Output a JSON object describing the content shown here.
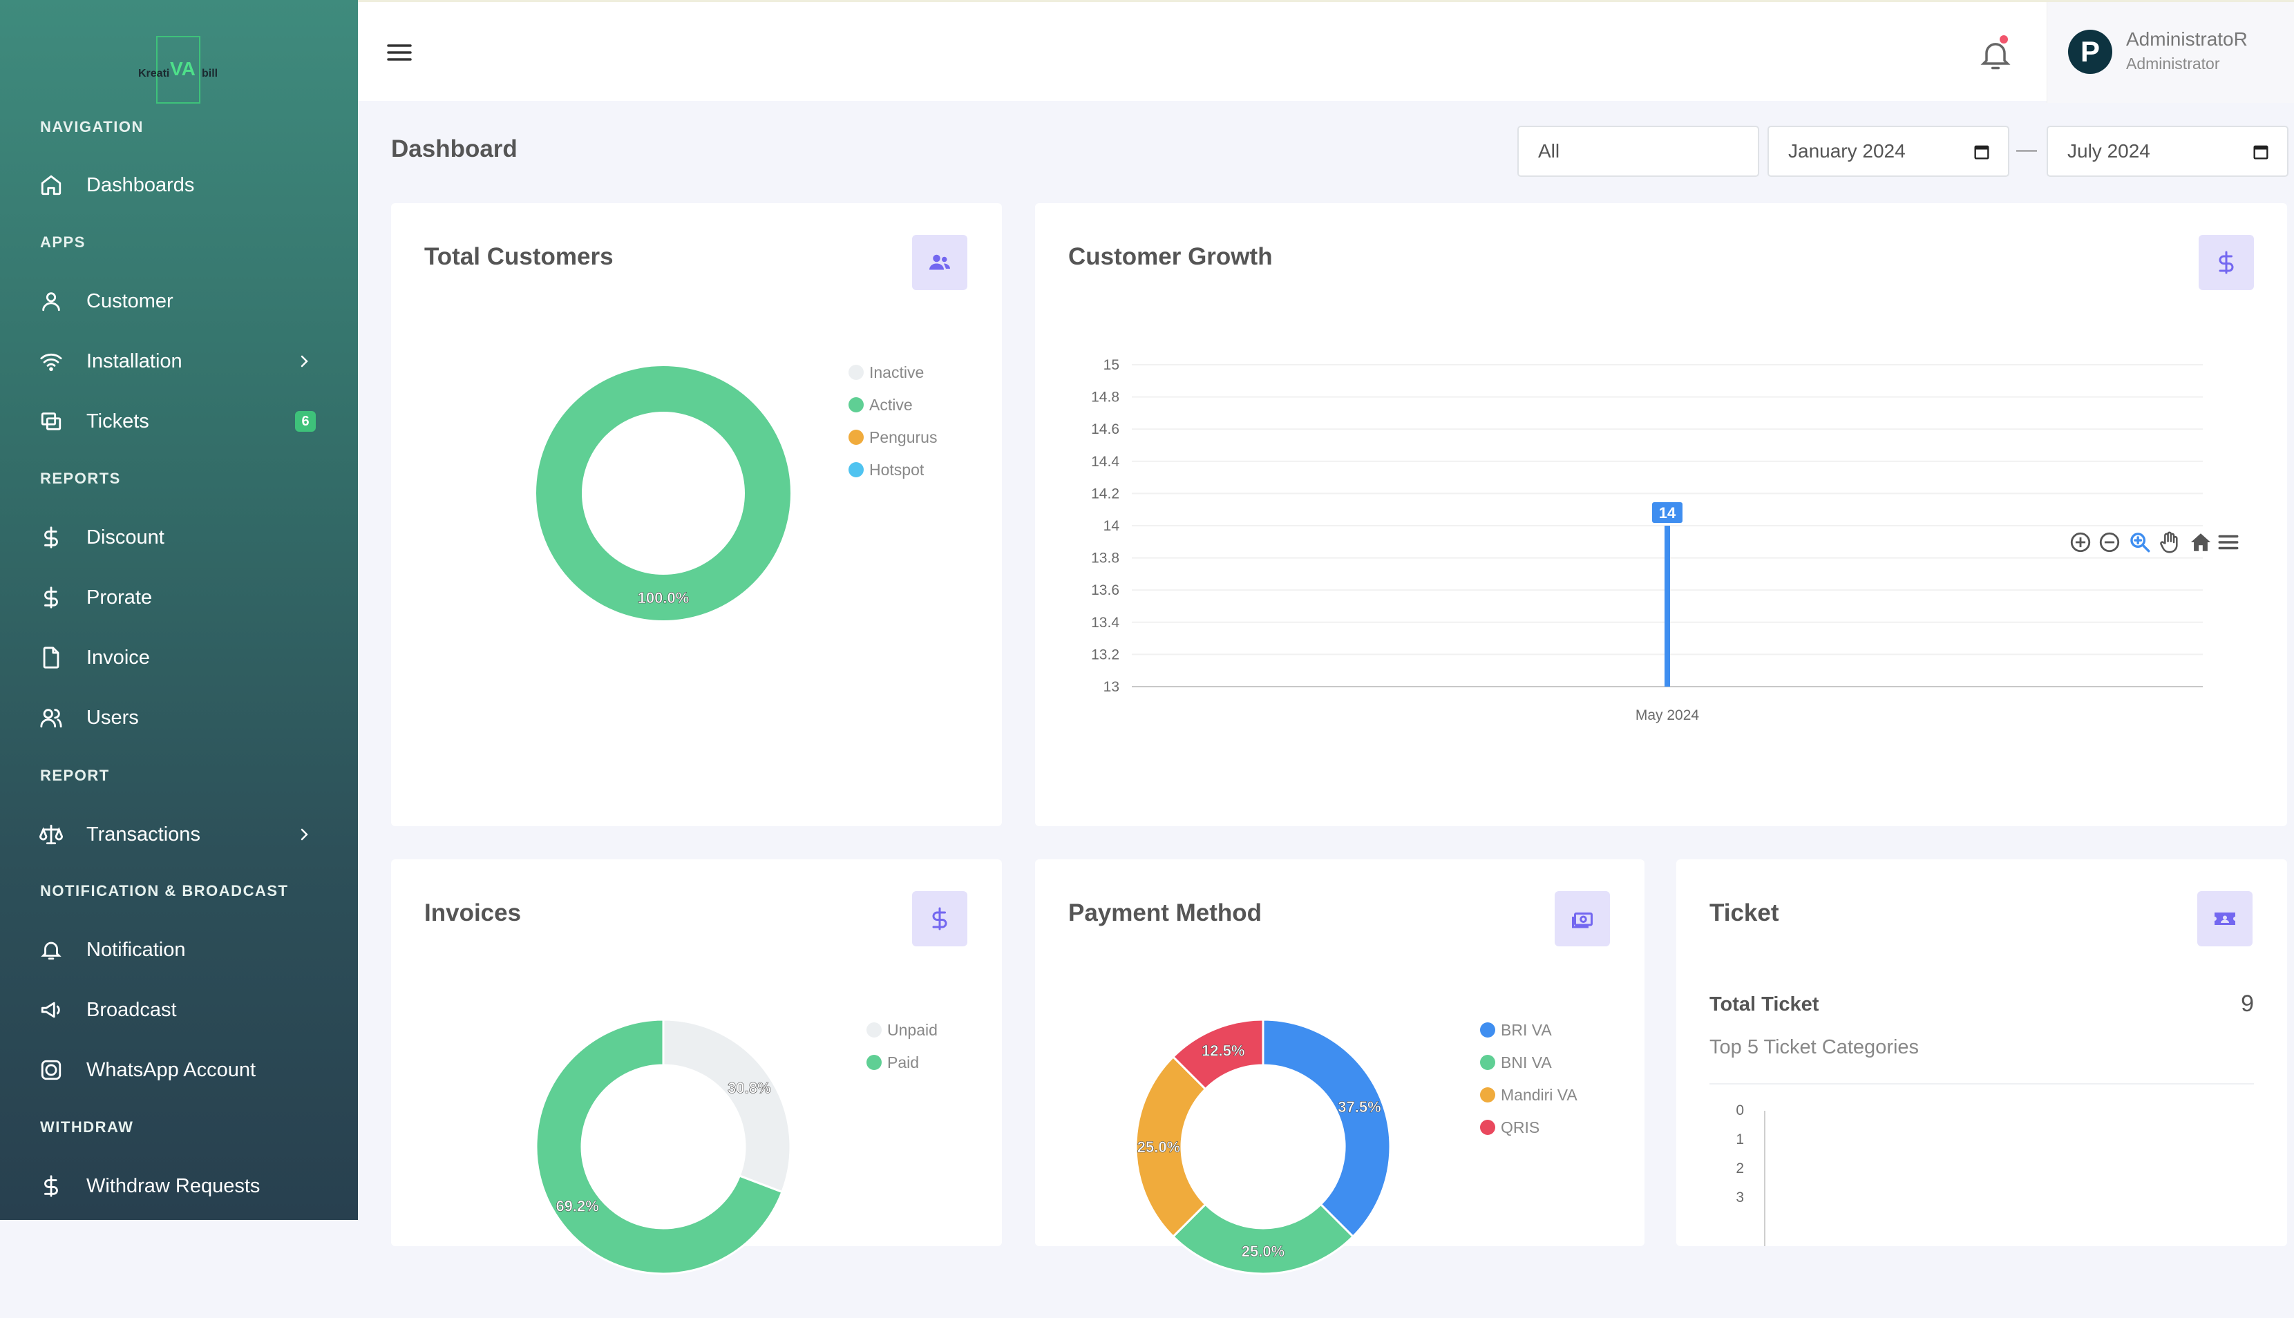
{
  "brand": {
    "logo_left": "Kreati",
    "logo_mid": "VA",
    "logo_right": "bill"
  },
  "sidebar": {
    "sections": [
      "NAVIGATION",
      "APPS",
      "REPORTS",
      "REPORT",
      "NOTIFICATION & BROADCAST",
      "WITHDRAW"
    ],
    "items": [
      {
        "label": "Dashboards",
        "icon": "home-icon"
      },
      {
        "label": "Customer",
        "icon": "user-icon"
      },
      {
        "label": "Installation",
        "icon": "wifi-icon"
      },
      {
        "label": "Tickets",
        "icon": "tickets-icon",
        "badge": "6"
      },
      {
        "label": "Discount",
        "icon": "dollar-icon"
      },
      {
        "label": "Prorate",
        "icon": "dollar-icon"
      },
      {
        "label": "Invoice",
        "icon": "file-icon"
      },
      {
        "label": "Users",
        "icon": "users-icon"
      },
      {
        "label": "Transactions",
        "icon": "scale-icon"
      },
      {
        "label": "Notification",
        "icon": "bell-icon"
      },
      {
        "label": "Broadcast",
        "icon": "megaphone-icon"
      },
      {
        "label": "WhatsApp Account",
        "icon": "whatsapp-icon"
      },
      {
        "label": "Withdraw Requests",
        "icon": "dollar-icon"
      }
    ]
  },
  "topbar": {
    "user_name": "AdministratoR",
    "user_role": "Administrator",
    "avatar_letter": "P"
  },
  "page": {
    "title": "Dashboard",
    "filter_all": "All",
    "date_from": "January 2024",
    "date_to": "July 2024",
    "separator": "—"
  },
  "cards": {
    "total_customers": {
      "title": "Total Customers"
    },
    "customer_growth": {
      "title": "Customer Growth"
    },
    "invoices": {
      "title": "Invoices"
    },
    "payment_method": {
      "title": "Payment Method"
    },
    "ticket": {
      "title": "Ticket",
      "total_label": "Total Ticket",
      "total_value": "9",
      "categories_label": "Top 5 Ticket Categories"
    }
  },
  "colors": {
    "green": "#5fcf94",
    "blue": "#3f8ef0",
    "orange": "#f0ab3c",
    "red": "#e9485d",
    "gray": "#eceff1",
    "sky": "#4fc3f0",
    "accent_bg": "#e4e1fb",
    "accent": "#7367f0"
  },
  "chart_data": [
    {
      "type": "pie",
      "title": "Total Customers",
      "categories": [
        "Inactive",
        "Active",
        "Pengurus",
        "Hotspot"
      ],
      "values": [
        0,
        100,
        0,
        0
      ],
      "labels": [
        "",
        "100.0%",
        "",
        ""
      ]
    },
    {
      "type": "bar",
      "title": "Customer Growth",
      "categories": [
        "May 2024"
      ],
      "values": [
        14
      ],
      "data_label": "14",
      "ylim": [
        13,
        15
      ],
      "yticks": [
        "15",
        "14.8",
        "14.6",
        "14.4",
        "14.2",
        "14",
        "13.8",
        "13.6",
        "13.4",
        "13.2",
        "13"
      ]
    },
    {
      "type": "pie",
      "title": "Invoices",
      "categories": [
        "Unpaid",
        "Paid"
      ],
      "values": [
        30.8,
        69.2
      ],
      "labels": [
        "30.8%",
        "69.2%"
      ]
    },
    {
      "type": "pie",
      "title": "Payment Method",
      "categories": [
        "BRI VA",
        "BNI VA",
        "Mandiri VA",
        "QRIS"
      ],
      "values": [
        37.5,
        25.0,
        25.0,
        12.5
      ],
      "labels": [
        "37.5%",
        "25.0%",
        "25.0%",
        "12.5%"
      ]
    },
    {
      "type": "bar",
      "title": "Ticket",
      "yticks": [
        "0",
        "1",
        "2",
        "3"
      ]
    }
  ]
}
